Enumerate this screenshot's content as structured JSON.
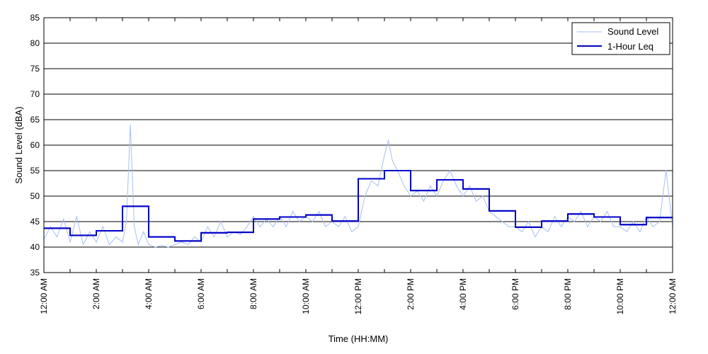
{
  "chart_data": {
    "type": "line",
    "title": "",
    "xlabel": "Time (HH:MM)",
    "ylabel": "Sound Level (dBA)",
    "ylim": [
      35,
      85
    ],
    "yticks": [
      35,
      40,
      45,
      50,
      55,
      60,
      65,
      70,
      75,
      80,
      85
    ],
    "xlim_hours": [
      0,
      24
    ],
    "xtick_hours": [
      0,
      2,
      4,
      6,
      8,
      10,
      12,
      14,
      16,
      18,
      20,
      22,
      24
    ],
    "xtick_labels": [
      "12:00 AM",
      "2:00 AM",
      "4:00 AM",
      "6:00 AM",
      "8:00 AM",
      "10:00 AM",
      "12:00 PM",
      "2:00 PM",
      "4:00 PM",
      "6:00 PM",
      "8:00 PM",
      "10:00 PM",
      "12:00 AM"
    ],
    "grid": "horizontal",
    "legend_position": "top-right",
    "series": [
      {
        "name": "Sound Level",
        "color": "#a8c0f0",
        "style": "thin-line",
        "values": [
          [
            0.0,
            41.5
          ],
          [
            0.25,
            44
          ],
          [
            0.5,
            42
          ],
          [
            0.75,
            45.5
          ],
          [
            1.0,
            41
          ],
          [
            1.25,
            46
          ],
          [
            1.5,
            40.5
          ],
          [
            1.75,
            43
          ],
          [
            2.0,
            41
          ],
          [
            2.25,
            44
          ],
          [
            2.5,
            40.5
          ],
          [
            2.75,
            42
          ],
          [
            3.0,
            41
          ],
          [
            3.15,
            45
          ],
          [
            3.3,
            64
          ],
          [
            3.45,
            44
          ],
          [
            3.6,
            40.5
          ],
          [
            3.8,
            43
          ],
          [
            4.0,
            40.5
          ],
          [
            4.25,
            40
          ],
          [
            4.5,
            40.3
          ],
          [
            4.75,
            40
          ],
          [
            5.0,
            40.5
          ],
          [
            5.25,
            41
          ],
          [
            5.5,
            40.5
          ],
          [
            5.75,
            42
          ],
          [
            6.0,
            41
          ],
          [
            6.25,
            44
          ],
          [
            6.5,
            42
          ],
          [
            6.75,
            45
          ],
          [
            7.0,
            42
          ],
          [
            7.25,
            43
          ],
          [
            7.5,
            42.5
          ],
          [
            7.75,
            44
          ],
          [
            8.0,
            46
          ],
          [
            8.25,
            44
          ],
          [
            8.5,
            45.5
          ],
          [
            8.75,
            44
          ],
          [
            9.0,
            46
          ],
          [
            9.25,
            44
          ],
          [
            9.5,
            47
          ],
          [
            9.75,
            45
          ],
          [
            10.0,
            46
          ],
          [
            10.25,
            45
          ],
          [
            10.5,
            47
          ],
          [
            10.75,
            44
          ],
          [
            11.0,
            45
          ],
          [
            11.25,
            44
          ],
          [
            11.5,
            46
          ],
          [
            11.75,
            43
          ],
          [
            12.0,
            44
          ],
          [
            12.25,
            50
          ],
          [
            12.5,
            53
          ],
          [
            12.75,
            52
          ],
          [
            13.0,
            58
          ],
          [
            13.15,
            61
          ],
          [
            13.3,
            57
          ],
          [
            13.5,
            55
          ],
          [
            13.75,
            52
          ],
          [
            14.0,
            50
          ],
          [
            14.25,
            51
          ],
          [
            14.5,
            49
          ],
          [
            14.75,
            52
          ],
          [
            15.0,
            50
          ],
          [
            15.25,
            53
          ],
          [
            15.5,
            55
          ],
          [
            15.75,
            52
          ],
          [
            16.0,
            50
          ],
          [
            16.25,
            52
          ],
          [
            16.5,
            49
          ],
          [
            16.75,
            50
          ],
          [
            17.0,
            47
          ],
          [
            17.25,
            46
          ],
          [
            17.5,
            45
          ],
          [
            17.75,
            44
          ],
          [
            18.0,
            44
          ],
          [
            18.25,
            43
          ],
          [
            18.5,
            45
          ],
          [
            18.75,
            42
          ],
          [
            19.0,
            44
          ],
          [
            19.25,
            43
          ],
          [
            19.5,
            46
          ],
          [
            19.75,
            44
          ],
          [
            20.0,
            46
          ],
          [
            20.25,
            45
          ],
          [
            20.5,
            47
          ],
          [
            20.75,
            44
          ],
          [
            21.0,
            46
          ],
          [
            21.25,
            45
          ],
          [
            21.5,
            47
          ],
          [
            21.75,
            44
          ],
          [
            22.0,
            44
          ],
          [
            22.25,
            43
          ],
          [
            22.5,
            45
          ],
          [
            22.75,
            43
          ],
          [
            23.0,
            46
          ],
          [
            23.25,
            44
          ],
          [
            23.5,
            45
          ],
          [
            23.75,
            55
          ],
          [
            24.0,
            44
          ]
        ]
      },
      {
        "name": "1-Hour Leq",
        "color": "#0000c8",
        "style": "step",
        "values": [
          [
            0,
            43.7
          ],
          [
            1,
            42.3
          ],
          [
            2,
            43.2
          ],
          [
            3,
            48
          ],
          [
            4,
            42
          ],
          [
            5,
            41.2
          ],
          [
            6,
            42.8
          ],
          [
            7,
            42.9
          ],
          [
            8,
            45.5
          ],
          [
            9,
            45.9
          ],
          [
            10,
            46.3
          ],
          [
            11,
            45.1
          ],
          [
            12,
            53.4
          ],
          [
            13,
            55
          ],
          [
            14,
            51.1
          ],
          [
            15,
            53.2
          ],
          [
            16,
            51.4
          ],
          [
            17,
            47.1
          ],
          [
            18,
            43.9
          ],
          [
            19,
            45.1
          ],
          [
            20,
            46.5
          ],
          [
            21,
            45.9
          ],
          [
            22,
            44.4
          ],
          [
            23,
            45.8
          ]
        ]
      }
    ]
  }
}
